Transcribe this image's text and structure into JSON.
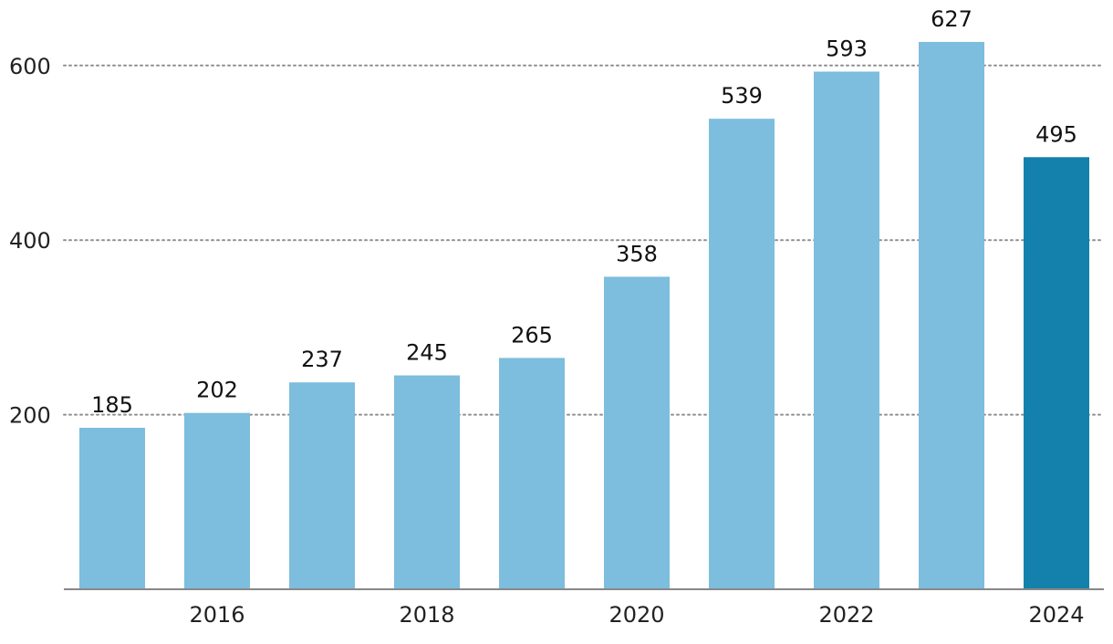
{
  "colors": {
    "bar": "#7dbddd",
    "highlight": "#1381ab",
    "grid": "#8f8f8f",
    "axis": "#888888",
    "text": "#222222"
  },
  "chart_data": {
    "type": "bar",
    "title": "",
    "xlabel": "",
    "ylabel": "",
    "categories": [
      "2015",
      "2016",
      "2017",
      "2018",
      "2019",
      "2020",
      "2021",
      "2022",
      "2023",
      "2024"
    ],
    "values": [
      185,
      202,
      237,
      245,
      265,
      358,
      539,
      593,
      627,
      495
    ],
    "value_labels": [
      "185",
      "202",
      "237",
      "245",
      "265",
      "358",
      "539",
      "593",
      "627",
      "495"
    ],
    "highlighted_category": "2024",
    "ylim": [
      0,
      640
    ],
    "y_ticks": [
      200,
      400,
      600
    ],
    "y_tick_labels": [
      "200",
      "400",
      "600"
    ],
    "x_tick_labels": [
      {
        "category": "2016",
        "label": "2016"
      },
      {
        "category": "2018",
        "label": "2018"
      },
      {
        "category": "2020",
        "label": "2020"
      },
      {
        "category": "2022",
        "label": "2022"
      },
      {
        "category": "2024",
        "label": "2024"
      }
    ],
    "grid": true,
    "legend": "none"
  }
}
